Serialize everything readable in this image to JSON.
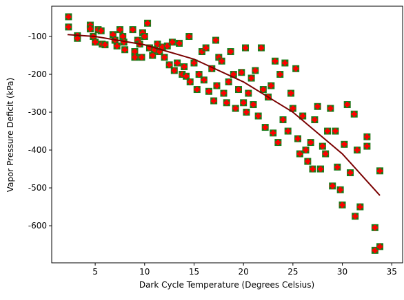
{
  "chart_data": {
    "type": "scatter",
    "x_label": "Dark Cycle Temperature (Degrees Celsius)",
    "y_label": "Vapor Pressure Deficit (kPa)",
    "xlim": [
      0.6,
      36.1
    ],
    "ylim": [
      -698,
      -20
    ],
    "xticks": [
      5,
      10,
      15,
      20,
      25,
      30,
      35
    ],
    "yticks": [
      -100,
      -200,
      -300,
      -400,
      -500,
      -600
    ],
    "marker_color": "#1a7a1a",
    "marker_edge_color": "#ff0000",
    "x": [
      2.3,
      2.3,
      3.2,
      3.2,
      4.5,
      4.5,
      4.8,
      5,
      5.3,
      5.6,
      5.7,
      6,
      6.8,
      7,
      7.2,
      7.5,
      7.8,
      7.9,
      8,
      8.8,
      9,
      9,
      9.3,
      9.5,
      9.7,
      9.8,
      10,
      10.3,
      10.5,
      10.8,
      11,
      11.3,
      11.5,
      11.8,
      12,
      12.3,
      12.5,
      12.8,
      13,
      13.3,
      13.5,
      13.8,
      14,
      14.2,
      14.5,
      14.6,
      15,
      15.3,
      15.5,
      15.8,
      16,
      16.2,
      16.5,
      16.8,
      17,
      17.2,
      17.3,
      17.5,
      17.8,
      18,
      18.3,
      18.5,
      18.7,
      19,
      19.2,
      19.5,
      19.8,
      20,
      20.2,
      20.3,
      20.5,
      20.8,
      21,
      21.2,
      21.5,
      21.8,
      22,
      22.2,
      22.5,
      22.8,
      23,
      23.2,
      23.5,
      23.7,
      24,
      24.2,
      24.5,
      24.8,
      25,
      25.3,
      25.5,
      25.7,
      26,
      26.3,
      26.5,
      26.8,
      27,
      27.2,
      27.5,
      27.8,
      28,
      28.3,
      28.5,
      28.8,
      29,
      29.3,
      29.5,
      29.8,
      30,
      30.2,
      30.5,
      30.8,
      31.2,
      31.3,
      31.5,
      31.8,
      32.5,
      32.5,
      33.3,
      33.3,
      33.8,
      33.8
    ],
    "values": [
      -48,
      -75,
      -98,
      -105,
      -70,
      -80,
      -100,
      -115,
      -82,
      -85,
      -120,
      -122,
      -95,
      -110,
      -125,
      -82,
      -100,
      -115,
      -135,
      -82,
      -140,
      -155,
      -110,
      -120,
      -155,
      -90,
      -100,
      -65,
      -130,
      -150,
      -135,
      -120,
      -140,
      -128,
      -155,
      -125,
      -175,
      -115,
      -190,
      -170,
      -118,
      -200,
      -180,
      -205,
      -100,
      -220,
      -170,
      -240,
      -200,
      -140,
      -215,
      -130,
      -245,
      -185,
      -270,
      -110,
      -230,
      -155,
      -165,
      -250,
      -275,
      -220,
      -140,
      -200,
      -290,
      -240,
      -195,
      -275,
      -130,
      -300,
      -250,
      -210,
      -280,
      -190,
      -310,
      -130,
      -240,
      -340,
      -260,
      -230,
      -355,
      -165,
      -380,
      -200,
      -320,
      -170,
      -350,
      -250,
      -290,
      -185,
      -370,
      -410,
      -310,
      -400,
      -430,
      -380,
      -450,
      -320,
      -285,
      -450,
      -390,
      -410,
      -350,
      -290,
      -495,
      -350,
      -445,
      -505,
      -545,
      -385,
      -280,
      -460,
      -305,
      -575,
      -400,
      -550,
      -365,
      -390,
      -605,
      -665,
      -455,
      -655
    ],
    "fit": {
      "color": "#7a0000",
      "x": [
        2.2,
        5,
        10,
        15,
        20,
        25,
        30,
        33.8
      ],
      "values": [
        -95,
        -100,
        -122,
        -160,
        -220,
        -300,
        -410,
        -520
      ]
    }
  }
}
